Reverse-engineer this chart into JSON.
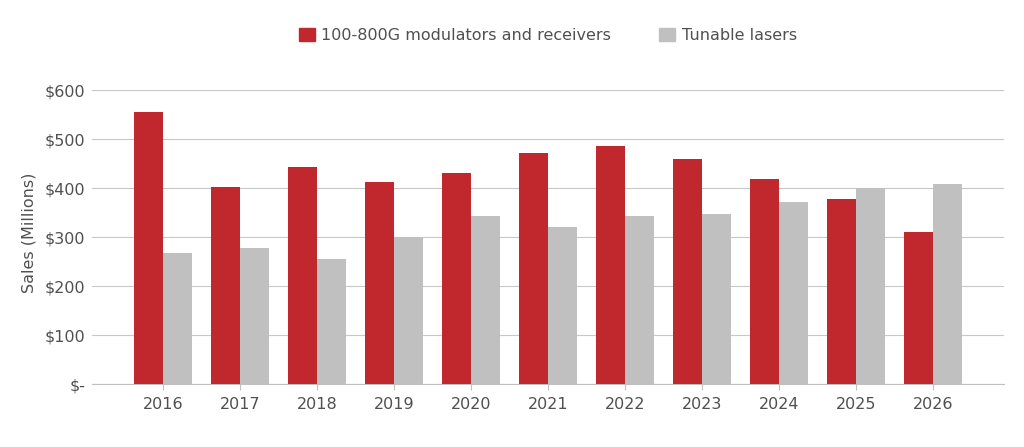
{
  "years": [
    2016,
    2017,
    2018,
    2019,
    2020,
    2021,
    2022,
    2023,
    2024,
    2025,
    2026
  ],
  "modulators": [
    555,
    403,
    443,
    413,
    432,
    472,
    487,
    460,
    420,
    378,
    310
  ],
  "tunable": [
    268,
    278,
    255,
    300,
    343,
    322,
    343,
    348,
    372,
    400,
    408
  ],
  "modulator_color": "#C0282D",
  "tunable_color": "#C0C0C0",
  "legend_label_mod": "100-800G modulators and receivers",
  "legend_label_tun": "Tunable lasers",
  "ylabel": "Sales (Millions)",
  "ylim": [
    0,
    620
  ],
  "yticks": [
    0,
    100,
    200,
    300,
    400,
    500,
    600
  ],
  "ytick_labels": [
    "$-",
    "$100",
    "$200",
    "$300",
    "$400",
    "$500",
    "$600"
  ],
  "background_color": "#FFFFFF",
  "bar_width": 0.38,
  "grid_color": "#C8C8C8",
  "tick_label_fontsize": 11.5,
  "legend_fontsize": 11.5,
  "ylabel_fontsize": 11.5
}
